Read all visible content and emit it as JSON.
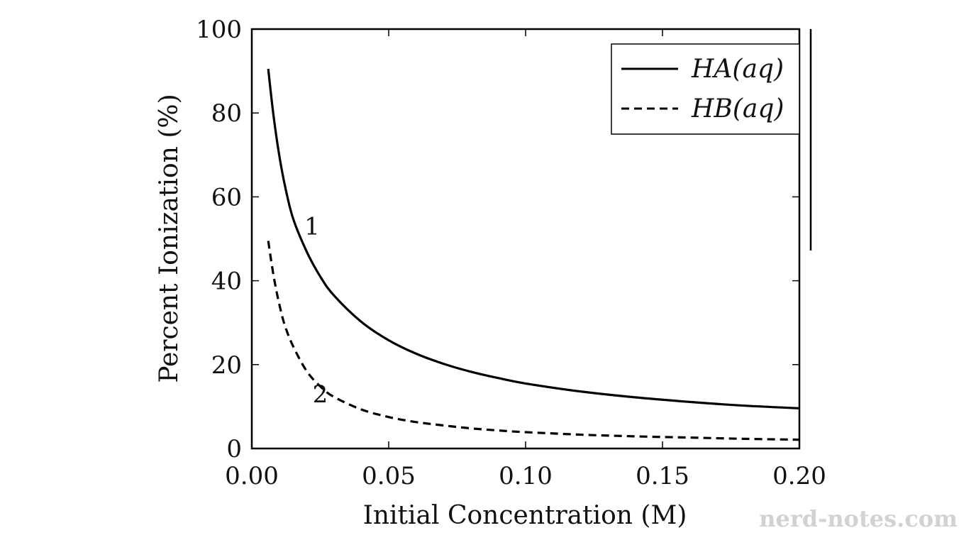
{
  "chart_data": {
    "type": "line",
    "xlabel": "Initial Concentration (M)",
    "ylabel": "Percent Ionization (%)",
    "xlim": [
      0,
      0.2
    ],
    "ylim": [
      0,
      100
    ],
    "x_ticks": [
      "0.00",
      "0.05",
      "0.10",
      "0.15",
      "0.20"
    ],
    "y_ticks": [
      "0",
      "20",
      "40",
      "60",
      "80",
      "100"
    ],
    "grid": false,
    "legend_position": "top-right",
    "series": [
      {
        "name": "HA(aq)",
        "style": "solid",
        "curve_label": "1",
        "x": [
          0.006,
          0.008,
          0.01,
          0.012,
          0.015,
          0.02,
          0.025,
          0.03,
          0.04,
          0.05,
          0.06,
          0.07,
          0.08,
          0.09,
          0.1,
          0.12,
          0.14,
          0.16,
          0.18,
          0.2
        ],
        "y": [
          90.5,
          79,
          70,
          63,
          55,
          47,
          41,
          36.5,
          30.2,
          25.8,
          22.6,
          20.2,
          18.3,
          16.8,
          15.5,
          13.6,
          12.2,
          11.1,
          10.2,
          9.6
        ]
      },
      {
        "name": "HB(aq)",
        "style": "dashed",
        "curve_label": "2",
        "x": [
          0.006,
          0.008,
          0.01,
          0.012,
          0.015,
          0.02,
          0.025,
          0.03,
          0.04,
          0.05,
          0.06,
          0.07,
          0.08,
          0.09,
          0.1,
          0.12,
          0.14,
          0.16,
          0.18,
          0.2
        ],
        "y": [
          49.5,
          41,
          34.5,
          29.5,
          24.5,
          18.5,
          14.8,
          12.3,
          9.3,
          7.5,
          6.3,
          5.5,
          4.8,
          4.3,
          3.9,
          3.3,
          2.9,
          2.6,
          2.3,
          2.1
        ]
      }
    ]
  },
  "watermark": "nerd-notes.com",
  "colors": {
    "line": "#000000",
    "background": "#ffffff",
    "watermark": "#d2d2d2"
  }
}
